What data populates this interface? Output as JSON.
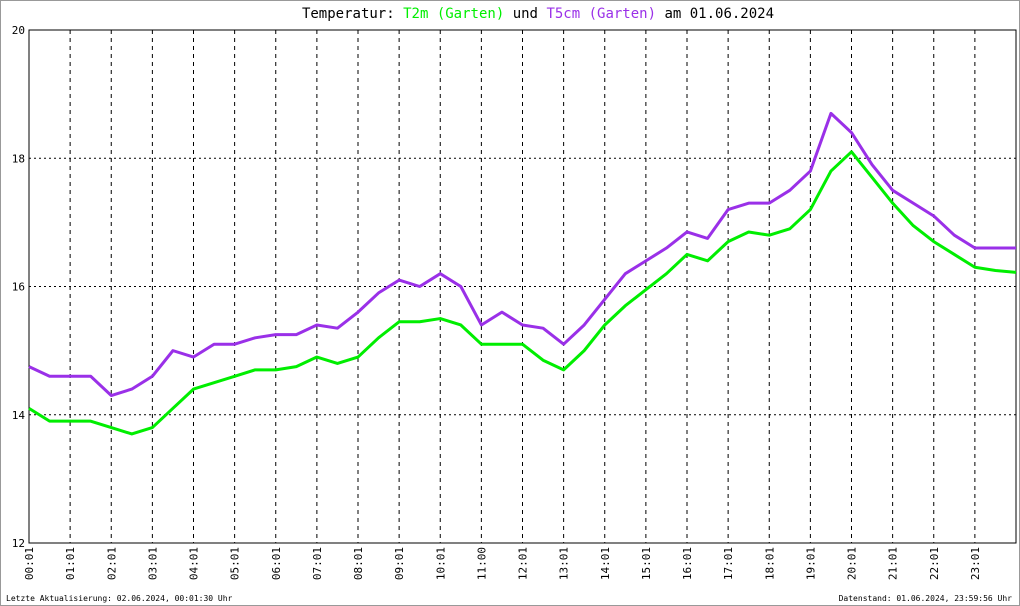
{
  "chart_data": {
    "type": "line",
    "title_prefix": "Temperatur:",
    "title_join": "und",
    "title_suffix": "am 01.06.2024",
    "footer_left": "Letzte Aktualisierung: 02.06.2024, 00:01:30 Uhr",
    "footer_right": "Datenstand: 01.06.2024, 23:59:56 Uhr",
    "x": [
      0,
      0.5,
      1,
      1.5,
      2,
      2.5,
      3,
      3.5,
      4,
      4.5,
      5,
      5.5,
      6,
      6.5,
      7,
      7.5,
      8,
      8.5,
      9,
      9.5,
      10,
      10.5,
      11,
      11.5,
      12,
      12.5,
      13,
      13.5,
      14,
      14.5,
      15,
      15.5,
      16,
      16.5,
      17,
      17.5,
      18,
      18.5,
      19,
      19.5,
      20,
      20.5,
      21,
      21.5,
      22,
      22.5,
      23,
      23.5,
      24
    ],
    "series": [
      {
        "name": "T2m (Garten)",
        "color": "#00ee00",
        "values": [
          14.1,
          13.9,
          13.9,
          13.9,
          13.8,
          13.7,
          13.8,
          14.1,
          14.4,
          14.5,
          14.6,
          14.7,
          14.7,
          14.75,
          14.9,
          14.8,
          14.9,
          15.2,
          15.45,
          15.45,
          15.5,
          15.4,
          15.1,
          15.1,
          15.1,
          14.85,
          14.7,
          15.0,
          15.4,
          15.7,
          15.95,
          16.2,
          16.5,
          16.4,
          16.7,
          16.85,
          16.8,
          16.9,
          17.2,
          17.8,
          18.1,
          17.7,
          17.3,
          16.95,
          16.7,
          16.5,
          16.3,
          16.25,
          16.22
        ]
      },
      {
        "name": "T5cm (Garten)",
        "color": "#9a30e8",
        "values": [
          14.75,
          14.6,
          14.6,
          14.6,
          14.3,
          14.4,
          14.6,
          15.0,
          14.9,
          15.1,
          15.1,
          15.2,
          15.25,
          15.25,
          15.4,
          15.35,
          15.6,
          15.9,
          16.1,
          16.0,
          16.2,
          16.0,
          15.4,
          15.6,
          15.4,
          15.35,
          15.1,
          15.4,
          15.8,
          16.2,
          16.4,
          16.6,
          16.85,
          16.75,
          17.2,
          17.3,
          17.3,
          17.5,
          17.8,
          18.7,
          18.4,
          17.9,
          17.5,
          17.3,
          17.1,
          16.8,
          16.6,
          16.6,
          16.6
        ]
      }
    ],
    "xlim": [
      0,
      24
    ],
    "xticks": [
      {
        "value": 0,
        "label": "00:01"
      },
      {
        "value": 1,
        "label": "01:01"
      },
      {
        "value": 2,
        "label": "02:01"
      },
      {
        "value": 3,
        "label": "03:01"
      },
      {
        "value": 4,
        "label": "04:01"
      },
      {
        "value": 5,
        "label": "05:01"
      },
      {
        "value": 6,
        "label": "06:01"
      },
      {
        "value": 7,
        "label": "07:01"
      },
      {
        "value": 8,
        "label": "08:01"
      },
      {
        "value": 9,
        "label": "09:01"
      },
      {
        "value": 10,
        "label": "10:01"
      },
      {
        "value": 11,
        "label": "11:00"
      },
      {
        "value": 12,
        "label": "12:01"
      },
      {
        "value": 13,
        "label": "13:01"
      },
      {
        "value": 14,
        "label": "14:01"
      },
      {
        "value": 15,
        "label": "15:01"
      },
      {
        "value": 16,
        "label": "16:01"
      },
      {
        "value": 17,
        "label": "17:01"
      },
      {
        "value": 18,
        "label": "18:01"
      },
      {
        "value": 19,
        "label": "19:01"
      },
      {
        "value": 20,
        "label": "20:01"
      },
      {
        "value": 21,
        "label": "21:01"
      },
      {
        "value": 22,
        "label": "22:01"
      },
      {
        "value": 23,
        "label": "23:01"
      }
    ],
    "ylim": [
      12,
      20
    ],
    "yticks": [
      12,
      14,
      16,
      18,
      20
    ],
    "grid": true
  }
}
